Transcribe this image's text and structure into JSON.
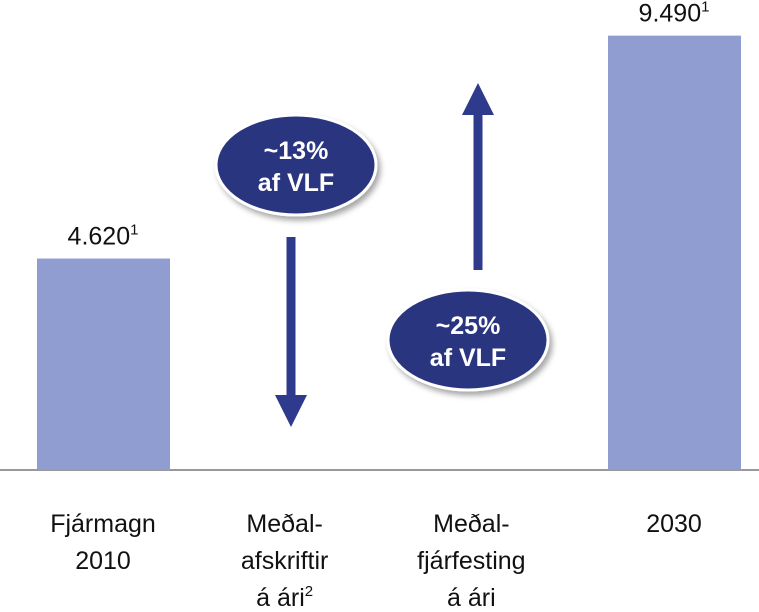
{
  "chart_data": {
    "type": "bar",
    "categories": [
      [
        "Fjármagn",
        "2010"
      ],
      [
        "Meðal-",
        "afskriftir",
        "á ári"
      ],
      [
        "Meðal-",
        "fjárfesting",
        "á ári"
      ],
      [
        "2030"
      ]
    ],
    "category_notes": [
      null,
      "2",
      null,
      null
    ],
    "values": [
      4620,
      null,
      null,
      9490
    ],
    "value_labels": [
      "4.620",
      null,
      null,
      "9.490"
    ],
    "value_label_notes": [
      "1",
      null,
      null,
      "1"
    ],
    "color": "#8f9dd0",
    "ylim": [
      0,
      9700
    ],
    "annotations": [
      [
        "~13%",
        "af VLF"
      ],
      [
        "~25%",
        "af VLF"
      ]
    ]
  }
}
